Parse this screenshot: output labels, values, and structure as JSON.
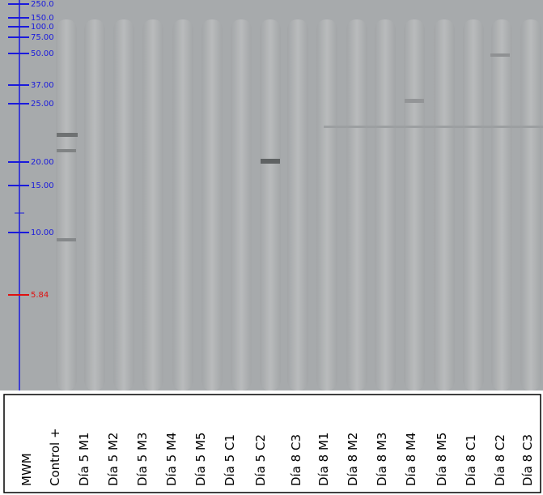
{
  "ladder": {
    "markers": [
      {
        "label": "250.0",
        "color": "#1a1adc"
      },
      {
        "label": "150.0",
        "color": "#1a1adc"
      },
      {
        "label": "100.0",
        "color": "#1a1adc"
      },
      {
        "label": "75.00",
        "color": "#1a1adc"
      },
      {
        "label": "50.00",
        "color": "#1a1adc"
      },
      {
        "label": "37.00",
        "color": "#1a1adc"
      },
      {
        "label": "25.00",
        "color": "#1a1adc"
      },
      {
        "label": "20.00",
        "color": "#1a1adc"
      },
      {
        "label": "15.00",
        "color": "#1a1adc"
      },
      {
        "label": "10.00",
        "color": "#1a1adc"
      },
      {
        "label": "5.84",
        "color": "#e01010"
      }
    ]
  },
  "lanes": [
    "MWM",
    "Control +",
    "Día 5 M1",
    "Día 5 M2",
    "Día 5 M3",
    "Día 5 M4",
    "Día 5 M5",
    "Día 5  C1",
    "Día 5  C2",
    "Día 8 C3",
    "Día 8 M1",
    "Día 8 M2",
    "Día 8 M3",
    "Día 8 M4",
    "Día 8 M5",
    "Día 8 C1",
    "Día 8 C2",
    "Día 8 C3"
  ]
}
